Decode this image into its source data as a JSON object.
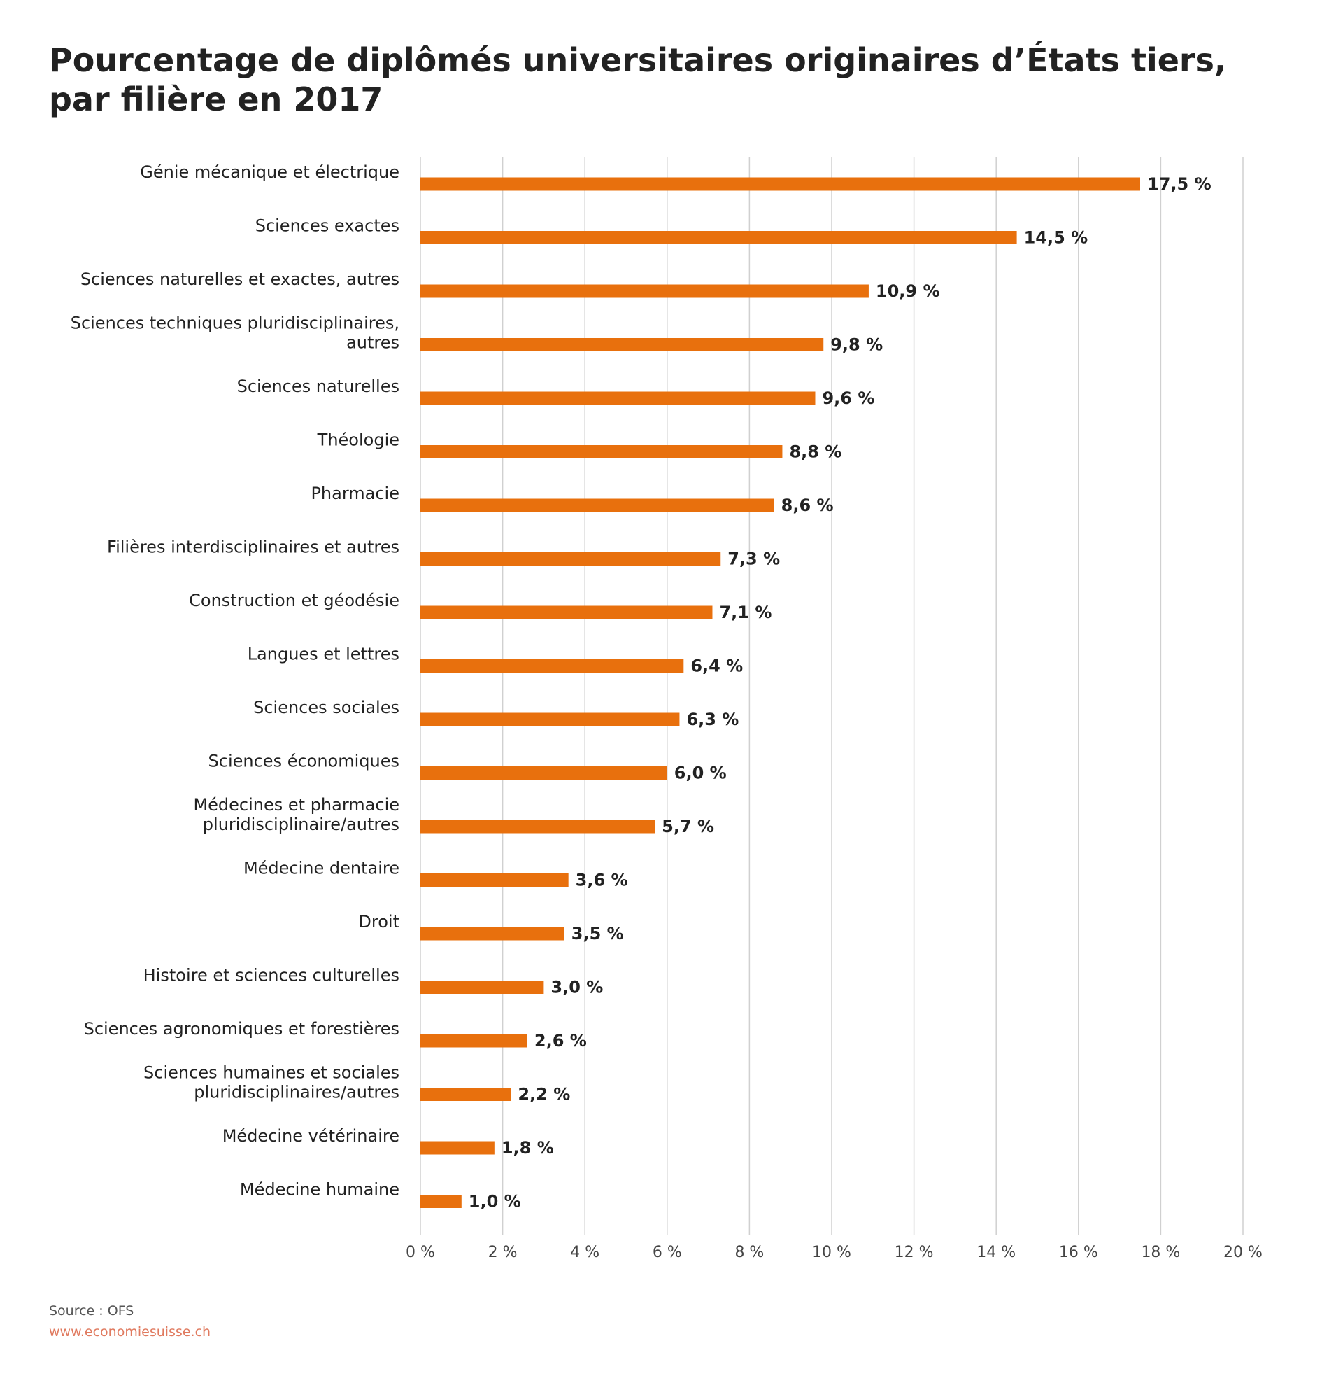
{
  "title_lines": [
    "Pourcentage de diplômés universitaires originaires d’États tiers,",
    "par filière en 2017"
  ],
  "source": "Source : OFS",
  "website": "www.economiesuisse.ch",
  "colors": {
    "bar": "#E8700D",
    "text": "#222222",
    "grid": "#D0D0D0",
    "link": "#E07A5F"
  },
  "chart_data": {
    "type": "bar",
    "orientation": "horizontal",
    "categories": [
      "Génie mécanique et électrique",
      "Sciences exactes",
      "Sciences naturelles et exactes, autres",
      "Sciences techniques pluridisciplinaires,\nautres",
      "Sciences naturelles",
      "Théologie",
      "Pharmacie",
      "Filières interdisciplinaires et autres",
      "Construction et géodésie",
      "Langues et lettres",
      "Sciences sociales",
      "Sciences économiques",
      "Médecines et pharmacie\npluridisciplinaire/autres",
      "Médecine dentaire",
      "Droit",
      "Histoire et sciences culturelles",
      "Sciences agronomiques et forestières",
      "Sciences humaines et sociales\npluridisciplinaires/autres",
      "Médecine vétérinaire",
      "Médecine humaine"
    ],
    "values": [
      17.5,
      14.5,
      10.9,
      9.8,
      9.6,
      8.8,
      8.6,
      7.3,
      7.1,
      6.4,
      6.3,
      6.0,
      5.7,
      3.6,
      3.5,
      3.0,
      2.6,
      2.2,
      1.8,
      1.0
    ],
    "value_labels": [
      "17,5 %",
      "14,5 %",
      "10,9 %",
      "9,8 %",
      "9,6 %",
      "8,8 %",
      "8,6 %",
      "7,3 %",
      "7,1 %",
      "6,4 %",
      "6,3 %",
      "6,0 %",
      "5,7 %",
      "3,6 %",
      "3,5 %",
      "3,0 %",
      "2,6 %",
      "2,2 %",
      "1,8 %",
      "1,0 %"
    ],
    "xlim": [
      0,
      20
    ],
    "xticks": [
      0,
      2,
      4,
      6,
      8,
      10,
      12,
      14,
      16,
      18,
      20
    ],
    "xtick_labels": [
      "0 %",
      "2 %",
      "4 %",
      "6 %",
      "8 %",
      "10 %",
      "12 %",
      "14 %",
      "16 %",
      "18 %",
      "20 %"
    ],
    "grid": true,
    "legend": "none"
  }
}
